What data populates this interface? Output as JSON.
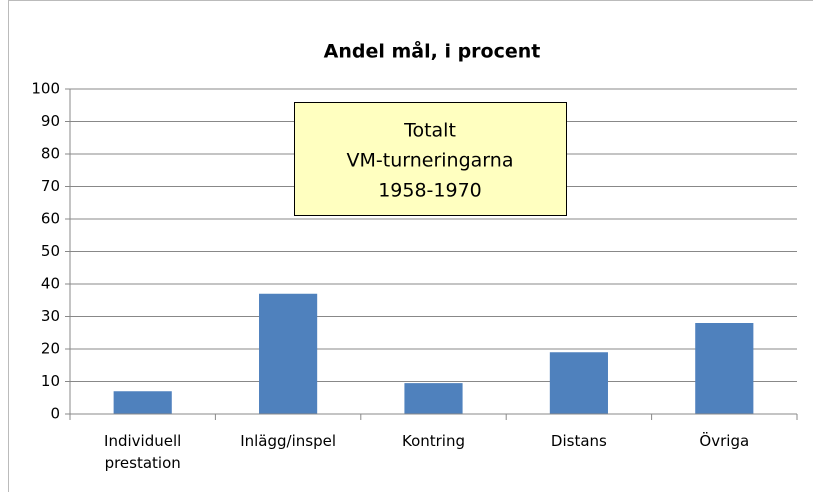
{
  "chart_data": {
    "type": "bar",
    "title": "Andel mål, i procent",
    "annotation": [
      "Totalt",
      "VM-turneringarna",
      "1958-1970"
    ],
    "categories": [
      "Individuell prestation",
      "Inlägg/inspel",
      "Kontring",
      "Distans",
      "Övriga"
    ],
    "values": [
      7,
      37,
      9.5,
      19,
      28
    ],
    "color": "#4f81bd",
    "ylim": [
      0,
      100
    ],
    "yticks": [
      0,
      10,
      20,
      30,
      40,
      50,
      60,
      70,
      80,
      90,
      100
    ],
    "grid": true
  }
}
